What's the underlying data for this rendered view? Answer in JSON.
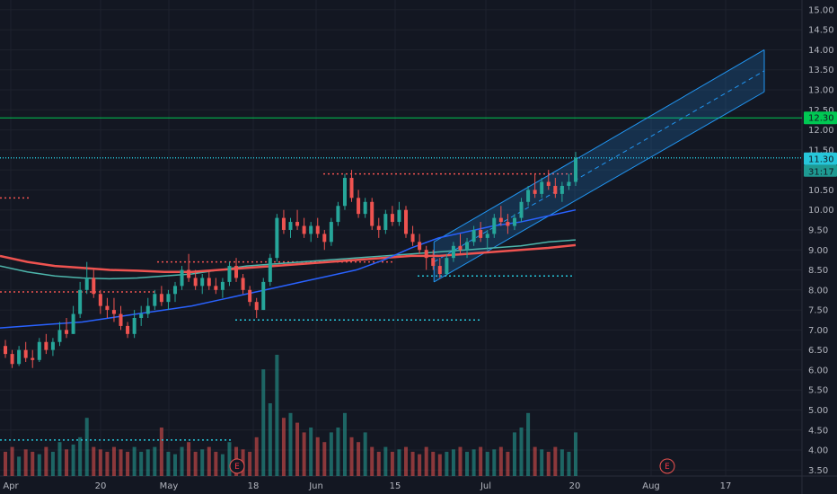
{
  "colors": {
    "background": "#131722",
    "up": "#26a69a",
    "down": "#ef5350",
    "channel": "#2196f3",
    "ema_fast": "#2962ff",
    "ema_slow": "#ef5350",
    "ema_mid": "#4db6ac",
    "target_line": "#00c853",
    "price_line": "#26c6da"
  },
  "y_axis": {
    "labels": [
      "15.00",
      "14.50",
      "14.00",
      "13.50",
      "13.00",
      "12.50",
      "12.00",
      "11.50",
      "11.00",
      "10.50",
      "10.00",
      "9.50",
      "9.00",
      "8.50",
      "8.00",
      "7.50",
      "7.00",
      "6.50",
      "6.00",
      "5.50",
      "5.00",
      "4.50",
      "4.00",
      "3.50"
    ]
  },
  "x_axis": {
    "labels": [
      "Apr",
      "20",
      "May",
      "18",
      "Jun",
      "15",
      "Jul",
      "20",
      "Aug",
      "17"
    ]
  },
  "badges": {
    "target": "12.30",
    "price": "11.30",
    "countdown": "31:17"
  },
  "earnings_markers": [
    "E",
    "E"
  ],
  "chart_data": {
    "type": "candlestick",
    "y_range": [
      3.35,
      15.2
    ],
    "horizontal_levels": [
      {
        "value": 12.3,
        "style": "solid",
        "color": "#00c853"
      },
      {
        "value": 11.3,
        "style": "dotted",
        "color": "#26c6da"
      },
      {
        "value": 10.9,
        "style": "dotted",
        "color": "#ef5350"
      },
      {
        "value": 8.7,
        "style": "dotted",
        "color": "#ef5350"
      },
      {
        "value": 8.35,
        "style": "dotted",
        "color": "#26c6da"
      },
      {
        "value": 7.25,
        "style": "dotted",
        "color": "#26c6da"
      },
      {
        "value": 7.95,
        "style": "dotted",
        "color": "#ef5350"
      }
    ],
    "candles": [
      [
        6.6,
        6.75,
        6.3,
        6.4
      ],
      [
        6.4,
        6.5,
        6.05,
        6.15
      ],
      [
        6.15,
        6.6,
        6.1,
        6.5
      ],
      [
        6.5,
        6.7,
        6.2,
        6.3
      ],
      [
        6.3,
        6.5,
        6.05,
        6.25
      ],
      [
        6.25,
        6.8,
        6.2,
        6.7
      ],
      [
        6.7,
        6.9,
        6.4,
        6.5
      ],
      [
        6.5,
        6.8,
        6.35,
        6.7
      ],
      [
        6.7,
        7.2,
        6.6,
        7.0
      ],
      [
        7.0,
        7.3,
        6.8,
        6.9
      ],
      [
        6.9,
        7.6,
        6.9,
        7.4
      ],
      [
        7.4,
        8.2,
        7.3,
        8.0
      ],
      [
        8.0,
        8.7,
        7.9,
        8.3
      ],
      [
        8.3,
        8.5,
        7.8,
        7.9
      ],
      [
        7.9,
        8.0,
        7.4,
        7.6
      ],
      [
        7.6,
        7.8,
        7.3,
        7.5
      ],
      [
        7.5,
        7.8,
        7.2,
        7.4
      ],
      [
        7.4,
        7.6,
        7.0,
        7.1
      ],
      [
        7.1,
        7.2,
        6.8,
        6.9
      ],
      [
        6.9,
        7.5,
        6.8,
        7.3
      ],
      [
        7.3,
        7.6,
        7.1,
        7.4
      ],
      [
        7.4,
        7.8,
        7.3,
        7.6
      ],
      [
        7.6,
        8.0,
        7.5,
        7.9
      ],
      [
        7.9,
        8.1,
        7.6,
        7.7
      ],
      [
        7.7,
        8.0,
        7.5,
        7.9
      ],
      [
        7.9,
        8.2,
        7.7,
        8.1
      ],
      [
        8.1,
        8.6,
        8.0,
        8.5
      ],
      [
        8.5,
        8.9,
        8.2,
        8.3
      ],
      [
        8.3,
        8.5,
        8.0,
        8.1
      ],
      [
        8.1,
        8.4,
        7.9,
        8.3
      ],
      [
        8.3,
        8.5,
        8.0,
        8.1
      ],
      [
        8.1,
        8.3,
        7.9,
        8.0
      ],
      [
        8.0,
        8.3,
        7.8,
        8.2
      ],
      [
        8.2,
        8.7,
        8.1,
        8.6
      ],
      [
        8.6,
        8.8,
        8.2,
        8.3
      ],
      [
        8.3,
        8.4,
        7.9,
        8.0
      ],
      [
        8.0,
        8.1,
        7.6,
        7.7
      ],
      [
        7.7,
        7.8,
        7.3,
        7.5
      ],
      [
        7.5,
        8.3,
        7.5,
        8.2
      ],
      [
        8.2,
        8.9,
        8.1,
        8.8
      ],
      [
        8.8,
        9.9,
        8.7,
        9.8
      ],
      [
        9.8,
        10.0,
        9.4,
        9.5
      ],
      [
        9.5,
        9.8,
        9.3,
        9.7
      ],
      [
        9.7,
        10.0,
        9.5,
        9.6
      ],
      [
        9.6,
        9.8,
        9.3,
        9.4
      ],
      [
        9.4,
        9.7,
        9.2,
        9.6
      ],
      [
        9.6,
        9.8,
        9.3,
        9.4
      ],
      [
        9.4,
        9.5,
        9.0,
        9.2
      ],
      [
        9.2,
        9.8,
        9.1,
        9.7
      ],
      [
        9.7,
        10.2,
        9.6,
        10.1
      ],
      [
        10.1,
        10.9,
        10.0,
        10.8
      ],
      [
        10.8,
        11.0,
        10.2,
        10.3
      ],
      [
        10.3,
        10.5,
        9.8,
        9.9
      ],
      [
        9.9,
        10.3,
        9.8,
        10.2
      ],
      [
        10.2,
        10.3,
        9.5,
        9.6
      ],
      [
        9.6,
        9.8,
        9.3,
        9.5
      ],
      [
        9.5,
        10.0,
        9.4,
        9.9
      ],
      [
        9.9,
        10.1,
        9.6,
        9.7
      ],
      [
        9.7,
        10.2,
        9.6,
        10.0
      ],
      [
        10.0,
        10.1,
        9.3,
        9.4
      ],
      [
        9.4,
        9.6,
        9.1,
        9.2
      ],
      [
        9.2,
        9.4,
        8.9,
        9.0
      ],
      [
        9.0,
        9.1,
        8.5,
        8.8
      ],
      [
        8.8,
        9.0,
        8.5,
        8.6
      ],
      [
        8.6,
        8.8,
        8.3,
        8.4
      ],
      [
        8.4,
        8.9,
        8.35,
        8.8
      ],
      [
        8.8,
        9.2,
        8.7,
        9.1
      ],
      [
        9.1,
        9.4,
        8.9,
        9.0
      ],
      [
        9.0,
        9.3,
        8.8,
        9.2
      ],
      [
        9.2,
        9.6,
        9.1,
        9.5
      ],
      [
        9.5,
        9.7,
        9.2,
        9.3
      ],
      [
        9.3,
        9.5,
        9.0,
        9.4
      ],
      [
        9.4,
        9.9,
        9.3,
        9.8
      ],
      [
        9.8,
        10.1,
        9.6,
        9.7
      ],
      [
        9.7,
        9.9,
        9.4,
        9.6
      ],
      [
        9.6,
        9.9,
        9.5,
        9.8
      ],
      [
        9.8,
        10.3,
        9.7,
        10.2
      ],
      [
        10.2,
        10.6,
        10.1,
        10.5
      ],
      [
        10.5,
        10.9,
        10.3,
        10.4
      ],
      [
        10.4,
        10.8,
        10.3,
        10.7
      ],
      [
        10.7,
        11.0,
        10.5,
        10.6
      ],
      [
        10.6,
        10.8,
        10.3,
        10.4
      ],
      [
        10.4,
        10.7,
        10.2,
        10.6
      ],
      [
        10.6,
        10.9,
        10.5,
        10.7
      ],
      [
        10.7,
        11.45,
        10.6,
        11.3
      ]
    ],
    "volume": [
      0.5,
      0.6,
      0.4,
      0.55,
      0.5,
      0.45,
      0.6,
      0.5,
      0.7,
      0.55,
      0.65,
      0.8,
      1.2,
      0.6,
      0.55,
      0.5,
      0.6,
      0.55,
      0.5,
      0.6,
      0.5,
      0.55,
      0.6,
      1.0,
      0.5,
      0.45,
      0.6,
      0.7,
      0.5,
      0.55,
      0.6,
      0.5,
      0.45,
      0.7,
      0.6,
      0.55,
      0.5,
      0.8,
      2.2,
      1.5,
      2.5,
      1.2,
      1.3,
      1.1,
      0.9,
      1.0,
      0.8,
      0.7,
      0.9,
      1.0,
      1.3,
      0.8,
      0.7,
      0.9,
      0.6,
      0.5,
      0.6,
      0.5,
      0.55,
      0.6,
      0.5,
      0.45,
      0.6,
      0.5,
      0.45,
      0.5,
      0.55,
      0.6,
      0.5,
      0.55,
      0.6,
      0.5,
      0.55,
      0.6,
      0.5,
      0.9,
      1.0,
      1.3,
      0.6,
      0.55,
      0.5,
      0.6,
      0.55,
      0.5,
      0.9
    ],
    "ema_fast": [
      7.05,
      7.1,
      7.15,
      7.2,
      7.3,
      7.4,
      7.5,
      7.6,
      7.75,
      7.9,
      8.05,
      8.2,
      8.35,
      8.5,
      8.75,
      9.05,
      9.3,
      9.45,
      9.6,
      9.7,
      9.85,
      10.0
    ],
    "ema_slow": [
      8.85,
      8.7,
      8.6,
      8.55,
      8.5,
      8.48,
      8.45,
      8.45,
      8.5,
      8.55,
      8.6,
      8.65,
      8.7,
      8.75,
      8.8,
      8.85,
      8.85,
      8.9,
      8.95,
      9.0,
      9.05,
      9.12
    ],
    "ema_mid": [
      8.6,
      8.45,
      8.35,
      8.3,
      8.28,
      8.3,
      8.35,
      8.4,
      8.5,
      8.6,
      8.65,
      8.7,
      8.75,
      8.8,
      8.85,
      8.9,
      8.95,
      9.0,
      9.05,
      9.1,
      9.2,
      9.25
    ],
    "channel": {
      "start_index": 63,
      "end_x_offset": 300,
      "lower_start": 8.2,
      "upper_start": 9.2,
      "lower_end": 12.95,
      "upper_end": 14.0
    }
  }
}
